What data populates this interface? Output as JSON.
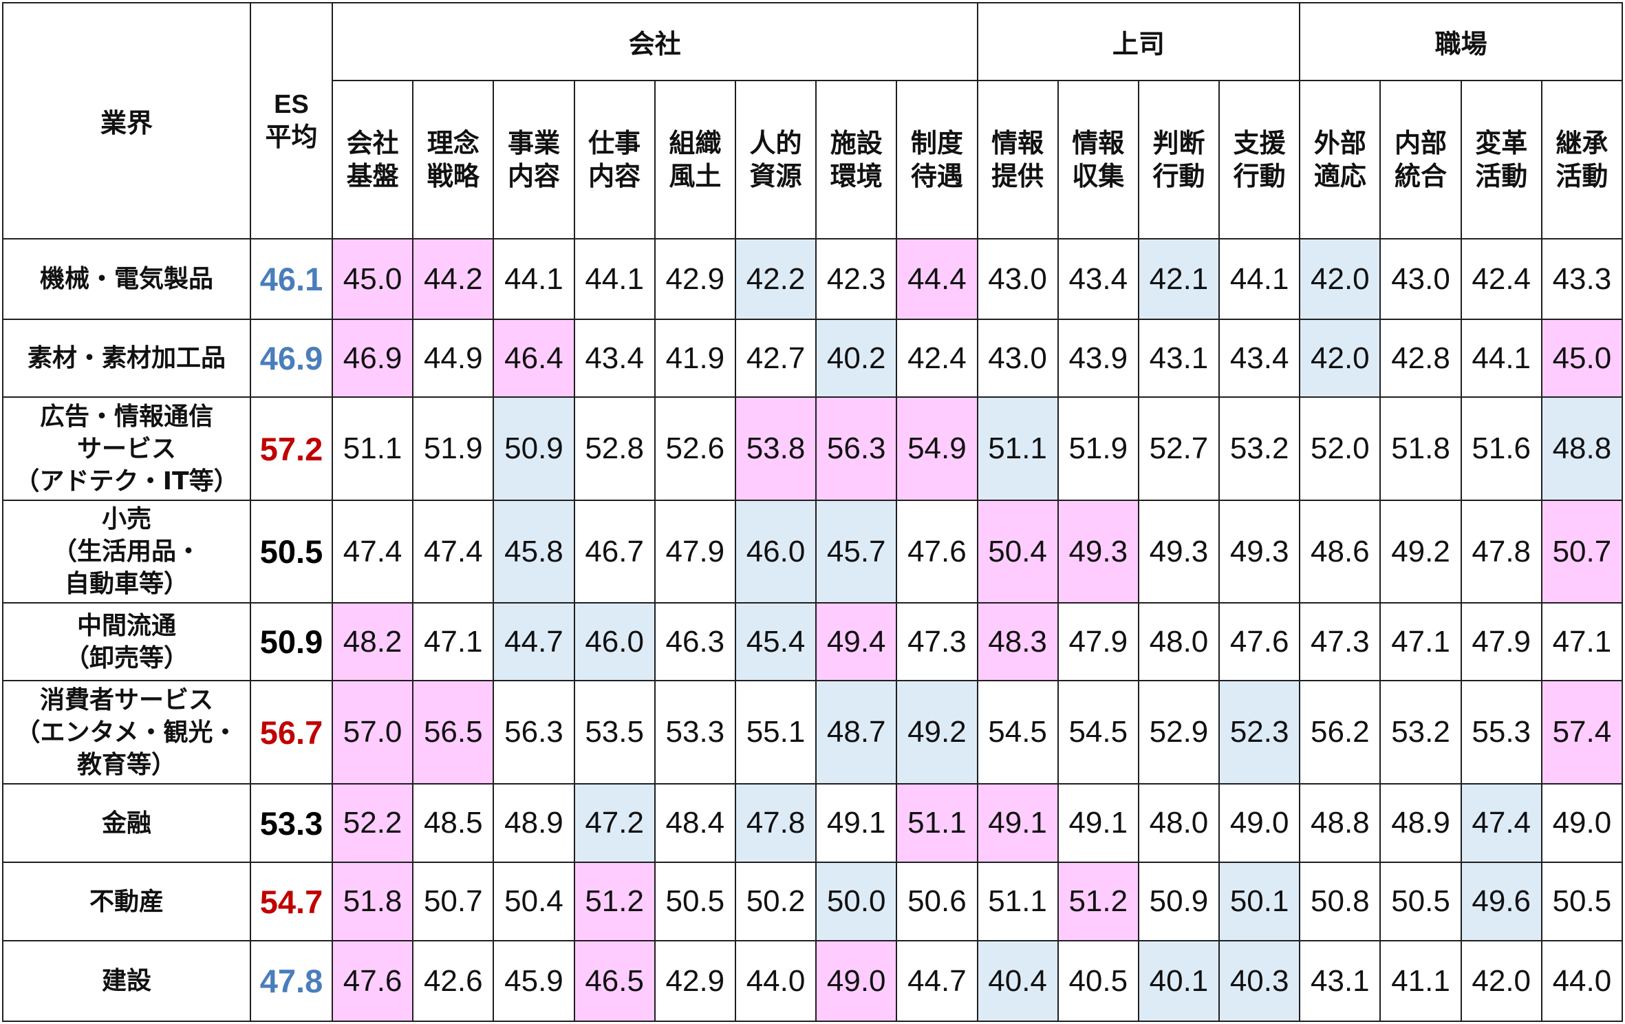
{
  "colors": {
    "highlight_pink": "#FFCCFF",
    "highlight_blue": "#DDEBF7",
    "es_blue": "#4A7EBB",
    "es_red": "#C00000",
    "es_black": "#000000"
  },
  "chart_data": {
    "type": "table",
    "corner_label": "業界",
    "es_label": "ES\n平均",
    "groups": [
      "会社",
      "上司",
      "職場"
    ],
    "columns": [
      "会社\n基盤",
      "理念\n戦略",
      "事業\n内容",
      "仕事\n内容",
      "組織\n風土",
      "人的\n資源",
      "施設\n環境",
      "制度\n待遇",
      "情報\n提供",
      "情報\n収集",
      "判断\n行動",
      "支援\n行動",
      "外部\n適応",
      "内部\n統合",
      "変革\n活動",
      "継承\n活動"
    ],
    "rows": [
      {
        "industry": "機械・電気製品",
        "es_avg": "46.1",
        "es_color": "blue",
        "values": [
          "45.0",
          "44.2",
          "44.1",
          "44.1",
          "42.9",
          "42.2",
          "42.3",
          "44.4",
          "43.0",
          "43.4",
          "42.1",
          "44.1",
          "42.0",
          "43.0",
          "42.4",
          "43.3"
        ],
        "highlight": [
          "pink",
          "pink",
          "",
          "",
          "",
          "blue",
          "",
          "pink",
          "",
          "",
          "blue",
          "",
          "blue",
          "",
          "",
          ""
        ]
      },
      {
        "industry": "素材・素材加工品",
        "es_avg": "46.9",
        "es_color": "blue",
        "values": [
          "46.9",
          "44.9",
          "46.4",
          "43.4",
          "41.9",
          "42.7",
          "40.2",
          "42.4",
          "43.0",
          "43.9",
          "43.1",
          "43.4",
          "42.0",
          "42.8",
          "44.1",
          "45.0"
        ],
        "highlight": [
          "pink",
          "",
          "pink",
          "",
          "",
          "",
          "blue",
          "",
          "",
          "",
          "",
          "",
          "blue",
          "",
          "",
          "pink"
        ]
      },
      {
        "industry": "広告・情報通信\nサービス\n（アドテク・IT等）",
        "es_avg": "57.2",
        "es_color": "red",
        "values": [
          "51.1",
          "51.9",
          "50.9",
          "52.8",
          "52.6",
          "53.8",
          "56.3",
          "54.9",
          "51.1",
          "51.9",
          "52.7",
          "53.2",
          "52.0",
          "51.8",
          "51.6",
          "48.8"
        ],
        "highlight": [
          "",
          "",
          "blue",
          "",
          "",
          "pink",
          "pink",
          "pink",
          "blue",
          "",
          "",
          "",
          "",
          "",
          "",
          "blue"
        ]
      },
      {
        "industry": "小売\n（生活用品・\n自動車等）",
        "es_avg": "50.5",
        "es_color": "black",
        "values": [
          "47.4",
          "47.4",
          "45.8",
          "46.7",
          "47.9",
          "46.0",
          "45.7",
          "47.6",
          "50.4",
          "49.3",
          "49.3",
          "49.3",
          "48.6",
          "49.2",
          "47.8",
          "50.7"
        ],
        "highlight": [
          "",
          "",
          "blue",
          "",
          "",
          "blue",
          "blue",
          "",
          "pink",
          "pink",
          "",
          "",
          "",
          "",
          "",
          "pink"
        ]
      },
      {
        "industry": "中間流通\n（卸売等）",
        "es_avg": "50.9",
        "es_color": "black",
        "values": [
          "48.2",
          "47.1",
          "44.7",
          "46.0",
          "46.3",
          "45.4",
          "49.4",
          "47.3",
          "48.3",
          "47.9",
          "48.0",
          "47.6",
          "47.3",
          "47.1",
          "47.9",
          "47.1"
        ],
        "highlight": [
          "pink",
          "",
          "blue",
          "blue",
          "",
          "blue",
          "pink",
          "",
          "pink",
          "",
          "",
          "",
          "",
          "",
          "",
          ""
        ]
      },
      {
        "industry": "消費者サービス\n（エンタメ・観光・\n教育等）",
        "es_avg": "56.7",
        "es_color": "red",
        "values": [
          "57.0",
          "56.5",
          "56.3",
          "53.5",
          "53.3",
          "55.1",
          "48.7",
          "49.2",
          "54.5",
          "54.5",
          "52.9",
          "52.3",
          "56.2",
          "53.2",
          "55.3",
          "57.4"
        ],
        "highlight": [
          "pink",
          "pink",
          "",
          "",
          "",
          "",
          "blue",
          "blue",
          "",
          "",
          "",
          "blue",
          "",
          "",
          "",
          "pink"
        ]
      },
      {
        "industry": "金融",
        "es_avg": "53.3",
        "es_color": "black",
        "values": [
          "52.2",
          "48.5",
          "48.9",
          "47.2",
          "48.4",
          "47.8",
          "49.1",
          "51.1",
          "49.1",
          "49.1",
          "48.0",
          "49.0",
          "48.8",
          "48.9",
          "47.4",
          "49.0"
        ],
        "highlight": [
          "pink",
          "",
          "",
          "blue",
          "",
          "blue",
          "",
          "pink",
          "pink",
          "",
          "",
          "",
          "",
          "",
          "blue",
          ""
        ]
      },
      {
        "industry": "不動産",
        "es_avg": "54.7",
        "es_color": "red",
        "values": [
          "51.8",
          "50.7",
          "50.4",
          "51.2",
          "50.5",
          "50.2",
          "50.0",
          "50.6",
          "51.1",
          "51.2",
          "50.9",
          "50.1",
          "50.8",
          "50.5",
          "49.6",
          "50.5"
        ],
        "highlight": [
          "pink",
          "",
          "",
          "pink",
          "",
          "",
          "blue",
          "",
          "",
          "pink",
          "",
          "blue",
          "",
          "",
          "blue",
          ""
        ]
      },
      {
        "industry": "建設",
        "es_avg": "47.8",
        "es_color": "blue",
        "values": [
          "47.6",
          "42.6",
          "45.9",
          "46.5",
          "42.9",
          "44.0",
          "49.0",
          "44.7",
          "40.4",
          "40.5",
          "40.1",
          "40.3",
          "43.1",
          "41.1",
          "42.0",
          "44.0"
        ],
        "highlight": [
          "pink",
          "",
          "",
          "pink",
          "",
          "",
          "pink",
          "",
          "blue",
          "",
          "blue",
          "blue",
          "",
          "",
          "",
          ""
        ]
      }
    ]
  }
}
